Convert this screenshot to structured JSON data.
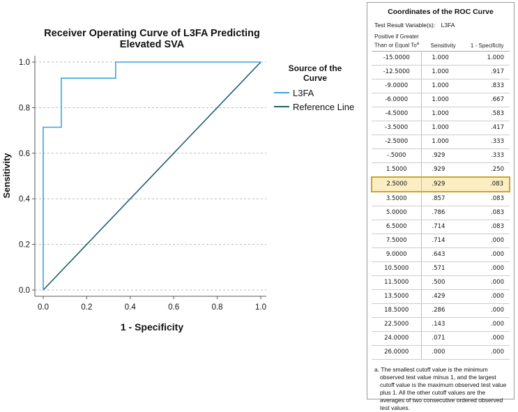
{
  "chart_data": {
    "type": "line",
    "title": "Receiver Operating Curve of L3FA Predicting Elevated SVA",
    "title_lines": [
      "Receiver Operating Curve of L3FA Predicting",
      "Elevated SVA"
    ],
    "xlabel": "1 - Specificity",
    "ylabel": "Sensitivity",
    "xlim": [
      0,
      1
    ],
    "ylim": [
      0,
      1
    ],
    "x_ticks": [
      "0.0",
      "0.2",
      "0.4",
      "0.6",
      "0.8",
      "1.0"
    ],
    "y_ticks": [
      "0.0",
      "0.2",
      "0.4",
      "0.6",
      "0.8",
      "1.0"
    ],
    "grid": "horizontal dashed",
    "legend_title": "Source of the Curve",
    "legend_placement": "right",
    "series": [
      {
        "name": "L3FA",
        "color": "#3da2dc",
        "step": true,
        "x": [
          0.0,
          0.0,
          0.0,
          0.083,
          0.083,
          0.083,
          0.25,
          0.333,
          0.333,
          0.417,
          0.583,
          0.667,
          0.833,
          0.917,
          1.0
        ],
        "y": [
          0.0,
          0.643,
          0.714,
          0.714,
          0.857,
          0.929,
          0.929,
          0.929,
          1.0,
          1.0,
          1.0,
          1.0,
          1.0,
          1.0,
          1.0
        ]
      },
      {
        "name": "Reference Line",
        "color": "#1a5f61",
        "x": [
          0,
          1
        ],
        "y": [
          0,
          1
        ]
      }
    ]
  },
  "table": {
    "title": "Coordinates of the ROC Curve",
    "variable_label": "Test Result Variable(s):",
    "variable_value": "L3FA",
    "headers": [
      "Positive if Greater Than or Equal To",
      "Sensitivity",
      "1 - Specificity"
    ],
    "header_note_marker": "a",
    "highlight_color": "#fbeec3",
    "highlight_row": 9,
    "rows": [
      [
        "-15.0000",
        "1.000",
        "1.000"
      ],
      [
        "-12.5000",
        "1.000",
        ".917"
      ],
      [
        "-9.0000",
        "1.000",
        ".833"
      ],
      [
        "-6.0000",
        "1.000",
        ".667"
      ],
      [
        "-4.5000",
        "1.000",
        ".583"
      ],
      [
        "-3.5000",
        "1.000",
        ".417"
      ],
      [
        "-2.5000",
        "1.000",
        ".333"
      ],
      [
        "-.5000",
        ".929",
        ".333"
      ],
      [
        "1.5000",
        ".929",
        ".250"
      ],
      [
        "2.5000",
        ".929",
        ".083"
      ],
      [
        "3.5000",
        ".857",
        ".083"
      ],
      [
        "5.0000",
        ".786",
        ".083"
      ],
      [
        "6.5000",
        ".714",
        ".083"
      ],
      [
        "7.5000",
        ".714",
        ".000"
      ],
      [
        "9.0000",
        ".643",
        ".000"
      ],
      [
        "10.5000",
        ".571",
        ".000"
      ],
      [
        "11.5000",
        ".500",
        ".000"
      ],
      [
        "13.5000",
        ".429",
        ".000"
      ],
      [
        "18.5000",
        ".286",
        ".000"
      ],
      [
        "22.5000",
        ".143",
        ".000"
      ],
      [
        "24.0000",
        ".071",
        ".000"
      ],
      [
        "26.0000",
        ".000",
        ".000"
      ]
    ],
    "footnote": "a. The smallest cutoff value is the minimum observed test value minus 1, and the largest cutoff value is the maximum observed test value plus 1. All the other cutoff values are the averages of two consecutive ordered observed test values."
  }
}
